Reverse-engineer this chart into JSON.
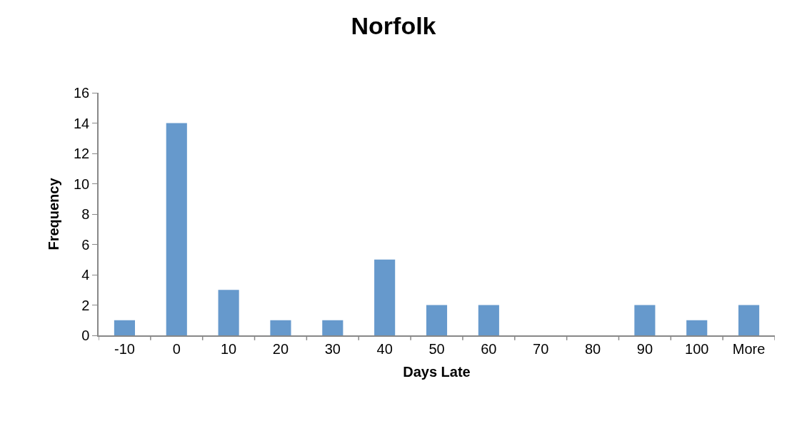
{
  "chart_data": {
    "type": "bar",
    "title": "Norfolk",
    "xlabel": "Days Late",
    "ylabel": "Frequency",
    "categories": [
      "-10",
      "0",
      "10",
      "20",
      "30",
      "40",
      "50",
      "60",
      "70",
      "80",
      "90",
      "100",
      "More"
    ],
    "values": [
      1,
      14,
      3,
      1,
      1,
      5,
      2,
      2,
      0,
      0,
      2,
      1,
      2
    ],
    "color": "#6699cc",
    "ylim": [
      0,
      16
    ],
    "yticks": [
      0,
      2,
      4,
      6,
      8,
      10,
      12,
      14,
      16
    ]
  }
}
